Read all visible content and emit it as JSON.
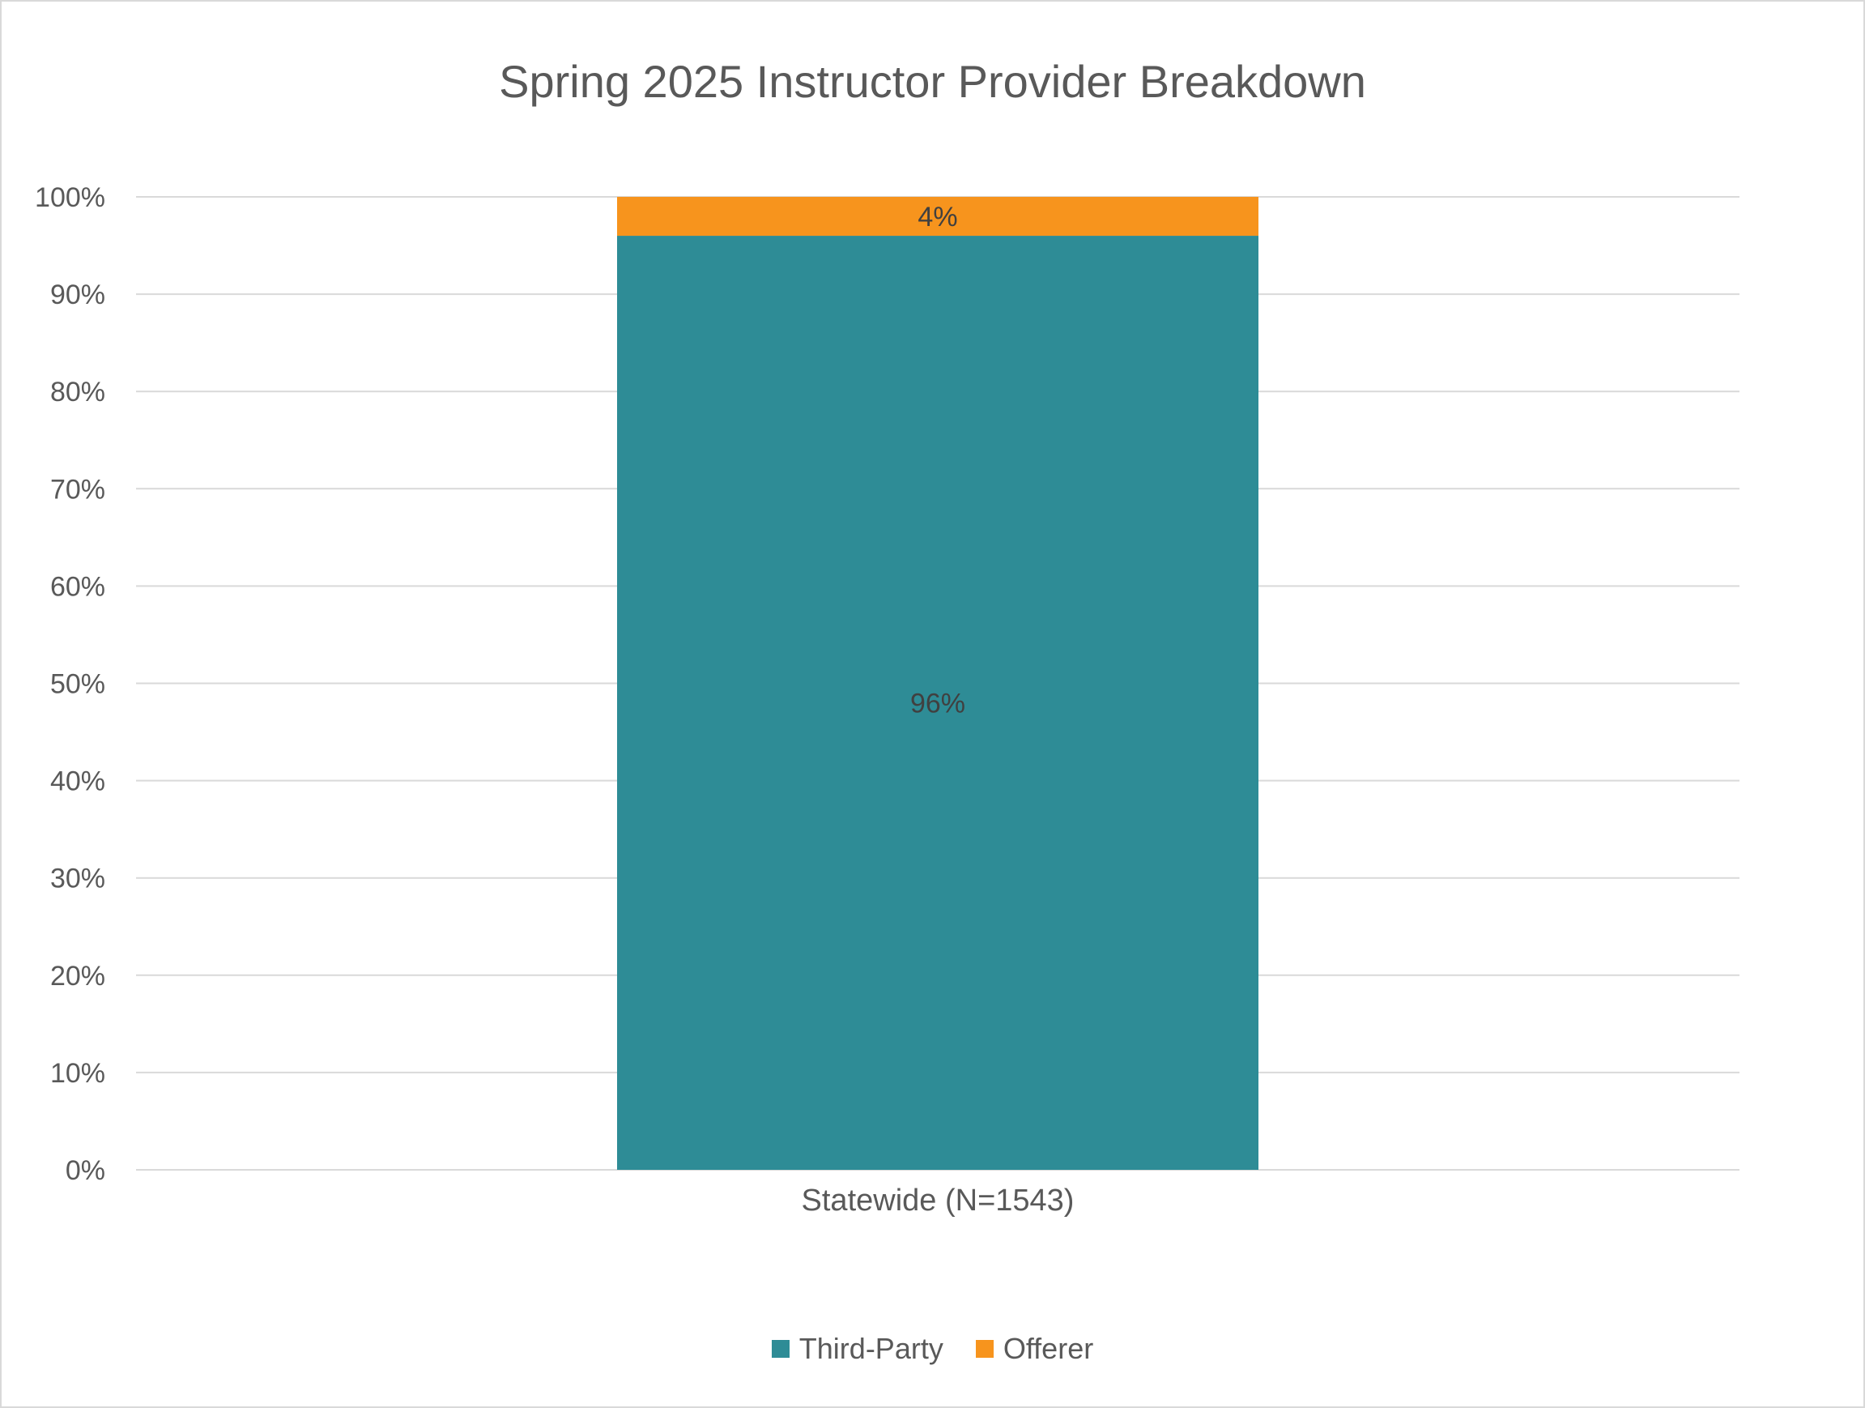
{
  "chart_data": {
    "type": "bar",
    "stacked": true,
    "percent_stacked": true,
    "title": "Spring 2025 Instructor Provider Breakdown",
    "categories": [
      "Statewide (N=1543)"
    ],
    "series": [
      {
        "name": "Third-Party",
        "values": [
          96
        ],
        "label": "96%",
        "color": "#2e8c96"
      },
      {
        "name": "Offerer",
        "values": [
          4
        ],
        "label": "4%",
        "color": "#f7941d"
      }
    ],
    "ylim": [
      0,
      100
    ],
    "yticks": [
      "0%",
      "10%",
      "20%",
      "30%",
      "40%",
      "50%",
      "60%",
      "70%",
      "80%",
      "90%",
      "100%"
    ],
    "xlabel": "",
    "ylabel": "",
    "grid": true,
    "legend_position": "bottom"
  }
}
